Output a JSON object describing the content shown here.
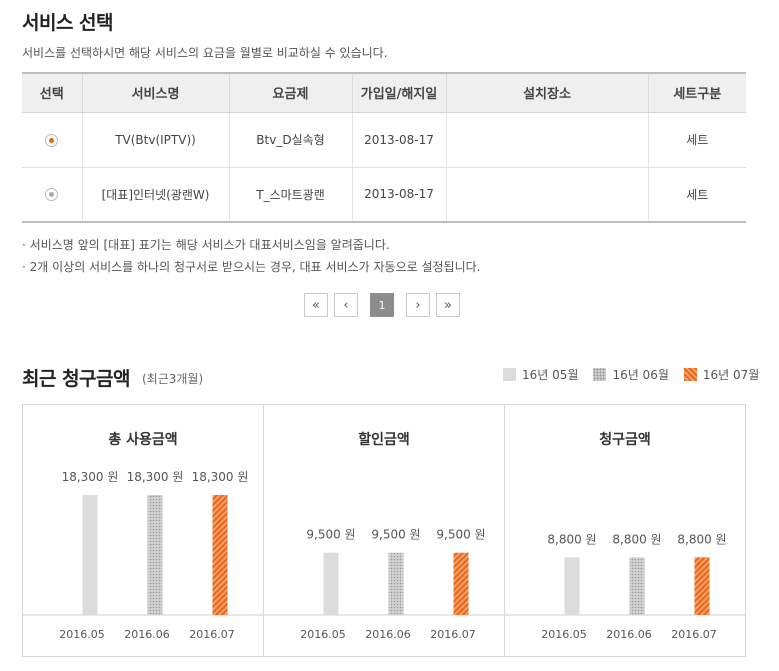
{
  "service": {
    "title": "서비스 선택",
    "description": "서비스를 선택하시면 해당 서비스의 요금을 월별로 비교하실 수 있습니다.",
    "columns": [
      "선택",
      "서비스명",
      "요금제",
      "가입일/해지일",
      "설치장소",
      "세트구분"
    ],
    "rows": [
      {
        "selected": true,
        "name": "TV(Btv(IPTV))",
        "plan": "Btv_D실속형",
        "date": "2013-08-17",
        "location": "",
        "set": "세트"
      },
      {
        "selected": false,
        "name": "[대표]인터넷(광랜W)",
        "plan": "T_스마트광랜",
        "date": "2013-08-17",
        "location": "",
        "set": "세트"
      }
    ],
    "notes": [
      "· 서비스명 앞의 [대표] 표기는 해당 서비스가 대표서비스임을 알려줍니다.",
      "· 2개 이상의 서비스를 하나의 청구서로 받으시는 경우, 대표 서비스가 자동으로 설정됩니다."
    ]
  },
  "pagination": {
    "first": "«",
    "prev": "‹",
    "current": "1",
    "next": "›",
    "last": "»"
  },
  "billing": {
    "title": "최근 청구금액",
    "subtitle": "(최근3개월)",
    "legend": [
      "16년 05월",
      "16년 06월",
      "16년 07월"
    ]
  },
  "colors": {
    "accent": "#e8651a",
    "month1": "#dcdcdc",
    "month2": "#c4c4c4"
  },
  "chart_data": [
    {
      "type": "bar",
      "title": "총 사용금액",
      "categories": [
        "2016.05",
        "2016.06",
        "2016.07"
      ],
      "values": [
        18300,
        18300,
        18300
      ],
      "labels": [
        "18,300 원",
        "18,300 원",
        "18,300 원"
      ],
      "ylim": [
        0,
        20000
      ]
    },
    {
      "type": "bar",
      "title": "할인금액",
      "categories": [
        "2016.05",
        "2016.06",
        "2016.07"
      ],
      "values": [
        9500,
        9500,
        9500
      ],
      "labels": [
        "9,500 원",
        "9,500 원",
        "9,500 원"
      ],
      "ylim": [
        0,
        20000
      ]
    },
    {
      "type": "bar",
      "title": "청구금액",
      "categories": [
        "2016.05",
        "2016.06",
        "2016.07"
      ],
      "values": [
        8800,
        8800,
        8800
      ],
      "labels": [
        "8,800 원",
        "8,800 원",
        "8,800 원"
      ],
      "ylim": [
        0,
        20000
      ]
    }
  ]
}
